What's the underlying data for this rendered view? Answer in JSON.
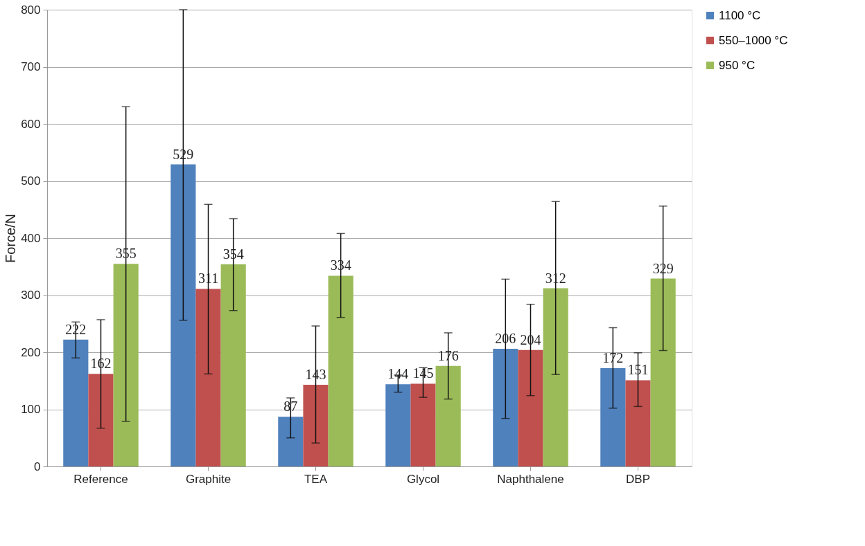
{
  "chart_data": {
    "type": "bar",
    "ylabel": "Force/N",
    "categories": [
      "Reference",
      "Graphite",
      "TEA",
      "Glycol",
      "Naphthalene",
      "DBP"
    ],
    "series": [
      {
        "name": "1100 °C",
        "color": "#4f81bd",
        "values": [
          222,
          529,
          87,
          144,
          206,
          172
        ],
        "errors": [
          [
            190,
            253
          ],
          [
            256,
            800
          ],
          [
            50,
            120
          ],
          [
            130,
            160
          ],
          [
            84,
            328
          ],
          [
            102,
            243
          ]
        ]
      },
      {
        "name": "550–1000 °C",
        "color": "#c0504d",
        "values": [
          162,
          311,
          143,
          145,
          204,
          151
        ],
        "errors": [
          [
            67,
            257
          ],
          [
            162,
            459
          ],
          [
            41,
            246
          ],
          [
            121,
            173
          ],
          [
            124,
            284
          ],
          [
            105,
            199
          ]
        ]
      },
      {
        "name": "950 °C",
        "color": "#9bbb59",
        "values": [
          355,
          354,
          334,
          176,
          312,
          329
        ],
        "errors": [
          [
            79,
            630
          ],
          [
            273,
            434
          ],
          [
            261,
            408
          ],
          [
            118,
            234
          ],
          [
            161,
            464
          ],
          [
            203,
            456
          ]
        ]
      }
    ],
    "ylim": [
      0,
      800
    ],
    "yticks": [
      0,
      100,
      200,
      300,
      400,
      500,
      600,
      700,
      800
    ],
    "grid": "y",
    "legend": "right",
    "data_labels": true
  }
}
